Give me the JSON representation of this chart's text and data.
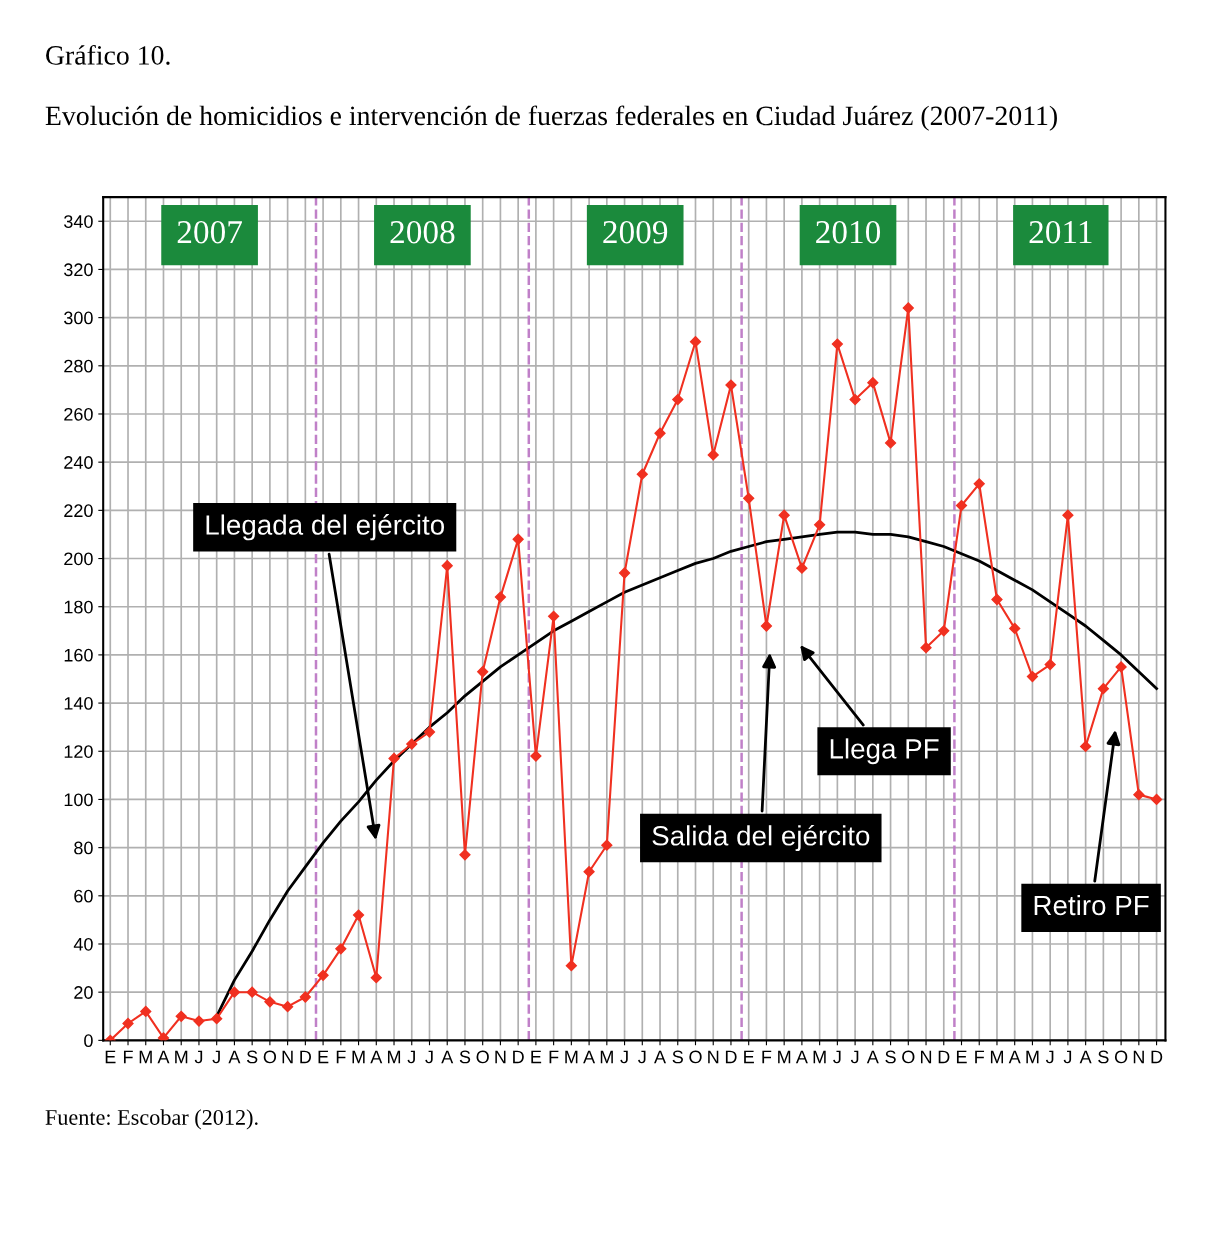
{
  "chart_data": {
    "type": "line",
    "title": "Gráfico 10.",
    "subtitle": "Evolución de homicidios e intervención de fuerzas federales en Ciudad Juárez (2007-2011)",
    "categories": [
      "E",
      "F",
      "M",
      "A",
      "M",
      "J",
      "J",
      "A",
      "S",
      "O",
      "N",
      "D",
      "E",
      "F",
      "M",
      "A",
      "M",
      "J",
      "J",
      "A",
      "S",
      "O",
      "N",
      "D",
      "E",
      "F",
      "M",
      "A",
      "M",
      "J",
      "J",
      "A",
      "S",
      "O",
      "N",
      "D",
      "E",
      "F",
      "M",
      "A",
      "M",
      "J",
      "J",
      "A",
      "S",
      "O",
      "N",
      "D",
      "E",
      "F",
      "M",
      "A",
      "M",
      "J",
      "J",
      "A",
      "S",
      "O",
      "N",
      "D"
    ],
    "ylim": [
      0,
      350
    ],
    "yticks": [
      0,
      20,
      40,
      60,
      80,
      100,
      120,
      140,
      160,
      180,
      200,
      220,
      240,
      260,
      280,
      300,
      320,
      340
    ],
    "grid": true,
    "series": [
      {
        "color": "#f03020",
        "marker": "diamond",
        "values": [
          0,
          7,
          12,
          1,
          10,
          8,
          9,
          20,
          20,
          16,
          14,
          18,
          27,
          38,
          52,
          26,
          117,
          123,
          128,
          197,
          77,
          153,
          184,
          208,
          118,
          176,
          31,
          70,
          81,
          194,
          235,
          252,
          266,
          290,
          243,
          272,
          225,
          172,
          218,
          196,
          214,
          289,
          266,
          273,
          248,
          304,
          163,
          170,
          222,
          231,
          183,
          171,
          151,
          156,
          218,
          122,
          146,
          155,
          102,
          100
        ]
      },
      {
        "type": "line",
        "color": "#000000",
        "marker": "none",
        "values": [
          null,
          null,
          null,
          null,
          null,
          null,
          10,
          25,
          37,
          50,
          62,
          72,
          82,
          91,
          99,
          108,
          116,
          123,
          130,
          136,
          143,
          149,
          155,
          160,
          165,
          170,
          174,
          178,
          182,
          186,
          189,
          192,
          195,
          198,
          200,
          203,
          205,
          207,
          208,
          209,
          210,
          211,
          211,
          210,
          210,
          209,
          207,
          205,
          202,
          199,
          195,
          191,
          187,
          182,
          177,
          172,
          166,
          160,
          153,
          146
        ]
      }
    ],
    "annotations": [
      "2007",
      "2008",
      "2009",
      "2010",
      "2011",
      "Llegada del ejército",
      "Salida del ejército",
      "Llega PF",
      "Retiro PF",
      "Fuente: Escobar (2012)."
    ]
  }
}
